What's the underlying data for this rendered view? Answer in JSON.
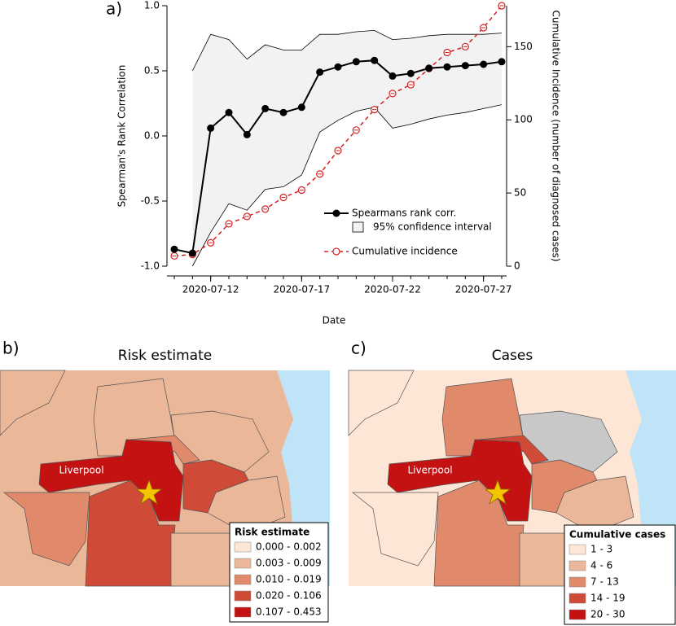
{
  "chart_data": {
    "type": "line",
    "panel_label": "a)",
    "xlabel": "Date",
    "ylabel": "Spearman's Rank Correlation",
    "y2label": "Cumulative Incidence (number of diagnosed cases)",
    "x": [
      "2020-07-10",
      "2020-07-11",
      "2020-07-12",
      "2020-07-13",
      "2020-07-14",
      "2020-07-15",
      "2020-07-16",
      "2020-07-17",
      "2020-07-18",
      "2020-07-19",
      "2020-07-20",
      "2020-07-21",
      "2020-07-22",
      "2020-07-23",
      "2020-07-24",
      "2020-07-25",
      "2020-07-26",
      "2020-07-27",
      "2020-07-28"
    ],
    "xticks": [
      "2020-07-12",
      "2020-07-17",
      "2020-07-22",
      "2020-07-27"
    ],
    "ylim": [
      -1,
      1
    ],
    "yticks": [
      {
        "value": -1,
        "label": "-1.0"
      },
      -0.5,
      {
        "value": 0,
        "label": "0.0"
      },
      0.5,
      {
        "value": 1,
        "label": "1.0"
      }
    ],
    "y2lim": [
      0,
      178
    ],
    "y2ticks": [
      0,
      50,
      100,
      150
    ],
    "series": [
      {
        "name": "Spearmans rank corr.",
        "color": "#000000",
        "values": [
          -0.87,
          -0.9,
          0.06,
          0.18,
          0.01,
          0.21,
          0.18,
          0.22,
          0.49,
          0.53,
          0.57,
          0.58,
          0.46,
          0.48,
          0.52,
          0.53,
          0.54,
          0.55,
          0.57
        ]
      },
      {
        "name": "95% confidence interval",
        "color": "#f2f2f2",
        "upper": [
          null,
          0.5,
          0.78,
          0.74,
          0.59,
          0.7,
          0.66,
          0.66,
          0.78,
          0.78,
          0.8,
          0.81,
          0.74,
          0.75,
          0.77,
          0.78,
          0.78,
          0.78,
          0.79
        ],
        "lower": [
          null,
          -1.0,
          -0.74,
          -0.52,
          -0.57,
          -0.41,
          -0.39,
          -0.3,
          0.03,
          0.12,
          0.19,
          0.22,
          0.06,
          0.09,
          0.13,
          0.16,
          0.18,
          0.21,
          0.24
        ]
      },
      {
        "name": "Cumulative incidence",
        "color": "#d62020",
        "axis": "y2",
        "values": [
          7,
          8,
          16,
          29,
          34,
          39,
          47,
          52,
          63,
          79,
          93,
          107,
          118,
          124,
          135,
          146,
          150,
          163,
          178
        ]
      }
    ]
  },
  "maps": [
    {
      "panel_label": "b)",
      "title": "Risk estimate",
      "place_label": "Liverpool",
      "legend_title": "Risk estimate",
      "legend": [
        {
          "label": "0.000 - 0.002",
          "color": "#fde6d6"
        },
        {
          "label": "0.003 - 0.009",
          "color": "#ebb799"
        },
        {
          "label": "0.010 - 0.019",
          "color": "#e08a6b"
        },
        {
          "label": "0.020 - 0.106",
          "color": "#d04b37"
        },
        {
          "label": "0.107 - 0.453",
          "color": "#c41212"
        }
      ]
    },
    {
      "panel_label": "c)",
      "title": "Cases",
      "place_label": "Liverpool",
      "legend_title": "Cumulative cases",
      "legend": [
        {
          "label": "1 - 3",
          "color": "#fde6d6"
        },
        {
          "label": "4 - 6",
          "color": "#ebb799"
        },
        {
          "label": "7 - 13",
          "color": "#e08a6b"
        },
        {
          "label": "14 - 19",
          "color": "#d04b37"
        },
        {
          "label": "20 - 30",
          "color": "#c41212"
        }
      ]
    }
  ]
}
